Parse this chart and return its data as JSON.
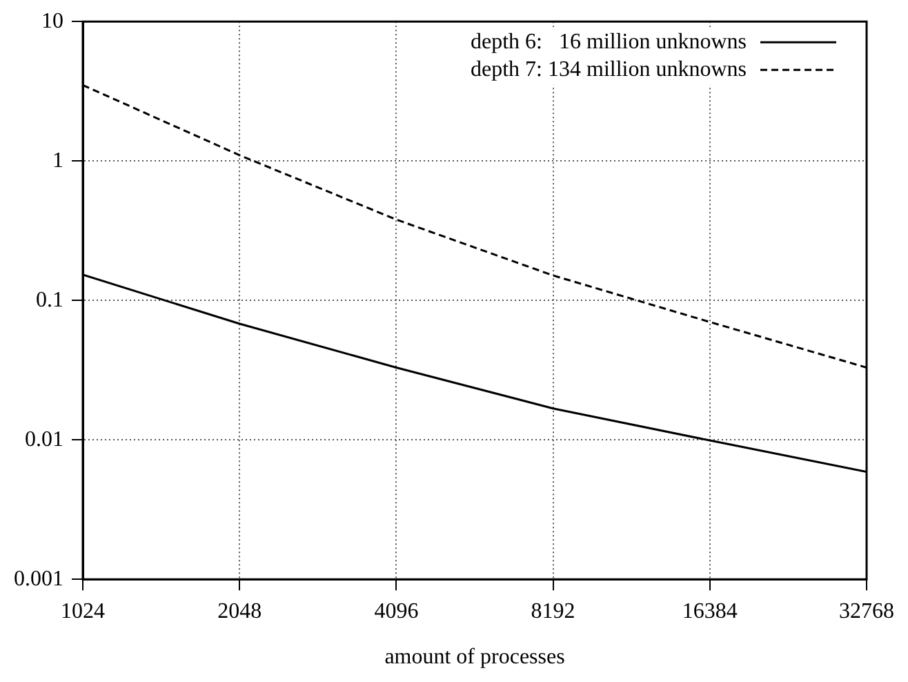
{
  "chart_data": {
    "type": "line",
    "xlabel": "amount of processes",
    "x": [
      1024,
      2048,
      4096,
      8192,
      16384,
      32768
    ],
    "series": [
      {
        "name": "depth 6:   16 million unknowns",
        "color": "#000000",
        "line_style": "solid",
        "values": [
          0.153,
          0.068,
          0.033,
          0.0168,
          0.0099,
          0.0059
        ]
      },
      {
        "name": "depth 7: 134 million unknowns",
        "color": "#000000",
        "line_style": "dashed",
        "values": [
          3.5,
          1.1,
          0.38,
          0.151,
          0.07,
          0.033
        ]
      }
    ],
    "log": "xy",
    "xlim": [
      1024,
      32768
    ],
    "xticks": [
      1024,
      2048,
      4096,
      8192,
      16384,
      32768
    ],
    "ylim": [
      0.001,
      10
    ],
    "yticks": [
      0.001,
      0.01,
      0.1,
      1,
      10
    ],
    "grid": true,
    "legend": "top right",
    "marker": "none"
  }
}
